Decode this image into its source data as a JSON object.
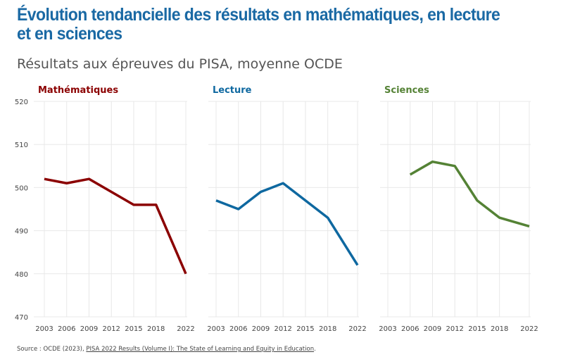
{
  "title": "Évolution tendancielle des résultats en mathématiques, en lecture et en sciences",
  "subtitle": "Résultats aux épreuves du PISA, moyenne OCDE",
  "source": {
    "prefix": "Source : OCDE (2023), ",
    "link": "PISA 2022 Results (Volume I): The State of Learning and Equity in Education",
    "suffix": "."
  },
  "chart_data": [
    {
      "type": "line",
      "title": "Mathématiques",
      "color": "#8b0000",
      "x": [
        2003,
        2006,
        2009,
        2012,
        2015,
        2018,
        2022
      ],
      "y": [
        502,
        501,
        502,
        499,
        496,
        496,
        480
      ],
      "ylim": [
        470,
        520
      ],
      "yticks": [
        470,
        480,
        490,
        500,
        510,
        520
      ],
      "xticks": [
        2003,
        2006,
        2009,
        2012,
        2015,
        2018,
        2022
      ],
      "grid": true
    },
    {
      "type": "line",
      "title": "Lecture",
      "color": "#0e68a0",
      "x": [
        2003,
        2006,
        2009,
        2012,
        2015,
        2018,
        2022
      ],
      "y": [
        497,
        495,
        499,
        501,
        497,
        493,
        482
      ],
      "ylim": [
        470,
        520
      ],
      "xticks": [
        2003,
        2006,
        2009,
        2012,
        2015,
        2018,
        2022
      ],
      "grid": true
    },
    {
      "type": "line",
      "title": "Sciences",
      "color": "#548235",
      "x": [
        2006,
        2009,
        2012,
        2015,
        2018,
        2022
      ],
      "y": [
        503,
        506,
        505,
        497,
        493,
        491
      ],
      "ylim": [
        470,
        520
      ],
      "xticks": [
        2003,
        2006,
        2009,
        2012,
        2015,
        2018,
        2022
      ],
      "grid": true
    }
  ]
}
